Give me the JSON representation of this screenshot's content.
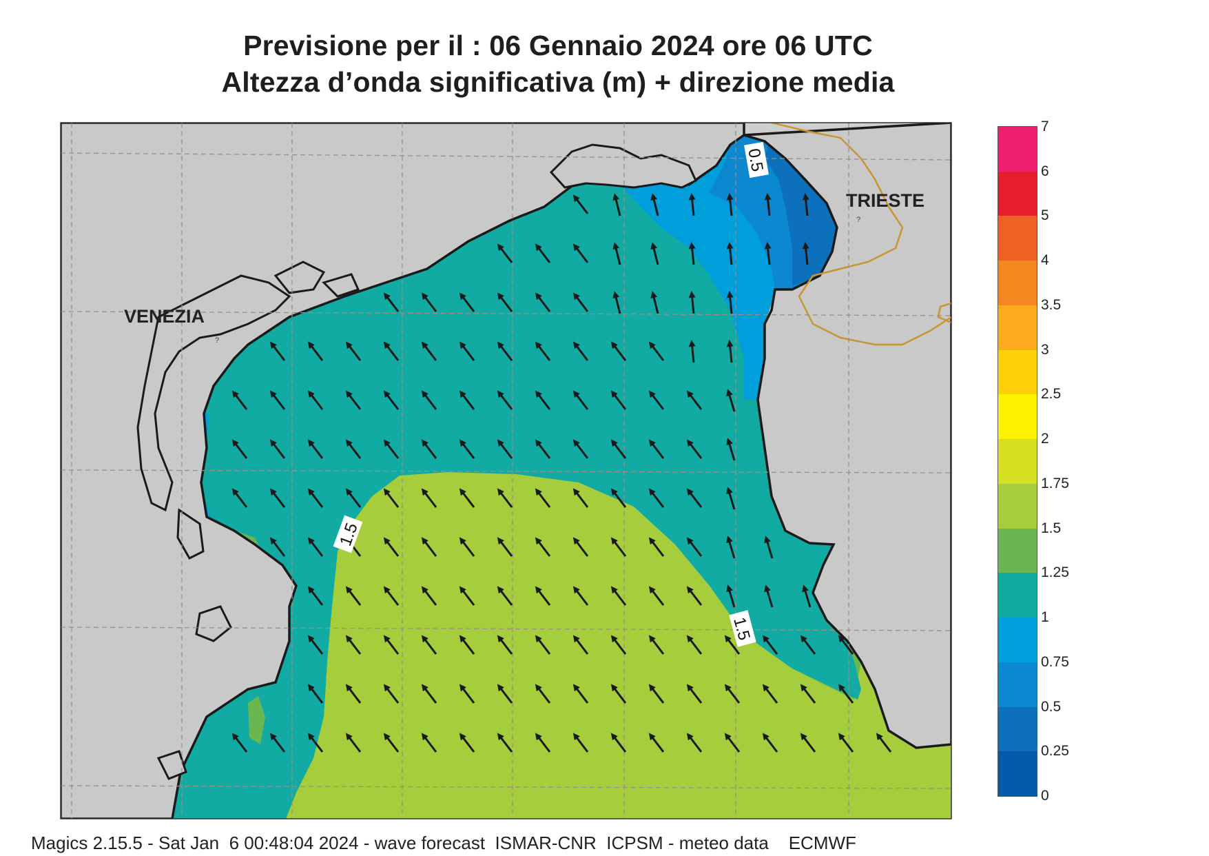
{
  "title": {
    "line1": "Previsione per il  :  06  Gennaio  2024   ore 06 UTC",
    "line2": "Altezza d’onda significativa (m) + direzione media"
  },
  "map": {
    "region": "Northern Adriatic Sea (Golfo di Venezia / Golfo di Trieste)",
    "places": [
      {
        "name": "VENEZIA",
        "type": "city-label"
      },
      {
        "name": "TRIESTE",
        "type": "city-label"
      }
    ],
    "contour_labels": [
      "0.5",
      "1.5",
      "1.5"
    ],
    "colors": {
      "land": "#cfcfd0",
      "coast": "#1a1a1a",
      "border": "#c8962e",
      "grid": "#9a8f85"
    },
    "wave_direction": "arrows pointing north-west / north (mean wave direction)"
  },
  "legend": {
    "unit": "m",
    "ticks": [
      "7",
      "6",
      "5",
      "4",
      "3.5",
      "3",
      "2.5",
      "2",
      "1.75",
      "1.5",
      "1.25",
      "1",
      "0.75",
      "0.5",
      "0.25",
      "0"
    ],
    "colors_top_to_bottom": [
      "#ee1f6c",
      "#e71f2d",
      "#ef6024",
      "#f6861f",
      "#fbab1d",
      "#fdd00a",
      "#fff200",
      "#d7e121",
      "#a6cd3b",
      "#6ab752",
      "#12aba4",
      "#009edb",
      "#0b88cf",
      "#0c70bd",
      "#045ba9"
    ]
  },
  "footer": {
    "text": "Magics 2.15.5 - Sat Jan  6 00:48:04 2024 - wave forecast  ISMAR-CNR  ICPSM - meteo data    ECMWF"
  }
}
